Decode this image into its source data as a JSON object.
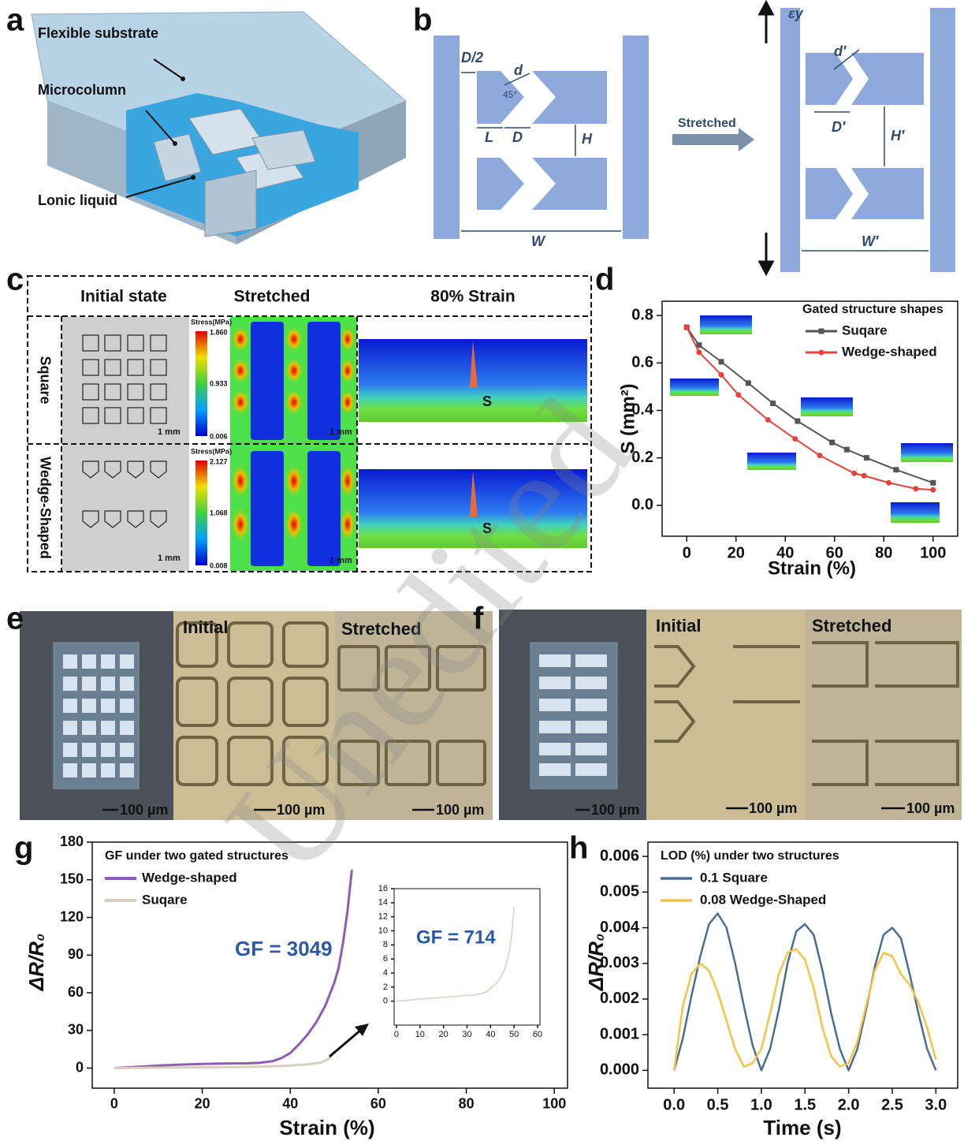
{
  "panel_labels": [
    "a",
    "b",
    "c",
    "d",
    "e",
    "f",
    "g",
    "h"
  ],
  "watermark": "Unedited",
  "panel_a": {
    "labels": [
      "Flexible substrate",
      "Microcolumn",
      "Lonic liquid"
    ]
  },
  "panel_b": {
    "initial_labels": [
      "D/2",
      "d",
      "45°",
      "L",
      "D",
      "H",
      "W"
    ],
    "arrow_label": "Stretched",
    "stretched_labels": [
      "εy",
      "d′",
      "D′",
      "H′",
      "W′"
    ]
  },
  "panel_c": {
    "columns": [
      "Initial state",
      "Stretched",
      "80% Strain"
    ],
    "rows": [
      "Square",
      "Wedge-Shaped"
    ],
    "colorbar_title": [
      "Stress(MPa)",
      "Stress(MPa)"
    ],
    "colorbar_square": [
      "1.860",
      "0.933",
      "0.006"
    ],
    "colorbar_wedge": [
      "2.127",
      "1.068",
      "0.008"
    ],
    "scale_bars": [
      "1 mm",
      "1 mm",
      "1 mm",
      "1 mm"
    ],
    "markers": [
      "S",
      "S"
    ]
  },
  "panel_e": {
    "headers": [
      "Initial",
      "Stretched"
    ],
    "scale_bars": [
      "100 µm",
      "100 µm",
      "100 µm"
    ]
  },
  "panel_f": {
    "headers": [
      "Initial",
      "Stretched"
    ],
    "scale_bars": [
      "100 µm",
      "100 µm",
      "100 µm"
    ]
  },
  "chart_data": [
    {
      "type": "line",
      "xlabel": "Strain (%)",
      "ylabel": "S (mm²)",
      "xlim": [
        -10,
        110
      ],
      "ylim": [
        -0.13,
        0.86
      ],
      "xticks": [
        0,
        20,
        40,
        60,
        80,
        100
      ],
      "yticks": [
        {
          "value": 0,
          "label": "0.0"
        },
        0.2,
        0.4,
        0.6,
        0.8
      ],
      "legend_title": "Gated structure shapes",
      "legend": "upper right",
      "series": [
        {
          "name": "Suqare",
          "color": "#555555",
          "marker": "square",
          "x": [
            0,
            5,
            14,
            25,
            35,
            45,
            59,
            65,
            73,
            85,
            100
          ],
          "values": [
            0.75,
            0.675,
            0.605,
            0.515,
            0.43,
            0.355,
            0.265,
            0.235,
            0.2,
            0.15,
            0.095
          ]
        },
        {
          "name": "Wedge-shaped",
          "color": "#e8413c",
          "marker": "circle",
          "x": [
            0,
            5,
            14,
            21,
            33,
            44,
            54,
            68,
            72,
            82,
            93,
            100
          ],
          "values": [
            0.75,
            0.645,
            0.55,
            0.465,
            0.36,
            0.28,
            0.21,
            0.135,
            0.125,
            0.095,
            0.07,
            0.065
          ]
        }
      ]
    },
    {
      "type": "line",
      "xlabel": "Strain (%)",
      "ylabel": "ΔR/R₀",
      "xlim": [
        -5,
        103
      ],
      "ylim": [
        -16,
        180
      ],
      "xticks": [
        0,
        20,
        40,
        60,
        80,
        100
      ],
      "yticks": [
        0,
        30,
        60,
        90,
        120,
        150,
        180
      ],
      "legend_title": "GF under two gated structures",
      "legend": "upper left",
      "annotation": "GF = 3049",
      "series": [
        {
          "name": "Wedge-shaped",
          "color": "#8c5cb8",
          "x": [
            0,
            5,
            10,
            15,
            20,
            25,
            30,
            33,
            36,
            38,
            40,
            42,
            44,
            46,
            48,
            50,
            51,
            52,
            53,
            54
          ],
          "values": [
            0,
            1,
            2,
            2.8,
            3.3,
            3.6,
            3.8,
            4.2,
            5.5,
            8,
            12,
            19,
            27,
            37,
            50,
            68,
            80,
            100,
            125,
            158
          ]
        },
        {
          "name": "Suqare",
          "color": "#d9cfc0",
          "x": [
            0,
            10,
            20,
            30,
            35,
            40,
            44,
            47,
            48,
            49,
            50
          ],
          "values": [
            0,
            0.3,
            0.6,
            1,
            1.3,
            2,
            3,
            4.5,
            6,
            8,
            13.4
          ]
        }
      ]
    },
    {
      "type": "line",
      "xlim": [
        -1,
        61
      ],
      "ylim": [
        -3.4,
        16
      ],
      "xticks": [
        0,
        10,
        20,
        30,
        40,
        50,
        60
      ],
      "yticks": [
        0,
        2,
        4,
        6,
        8,
        10,
        12,
        14,
        16
      ],
      "annotation": "GF = 714",
      "series": [
        {
          "color": "#d9cfc0",
          "x": [
            0,
            10,
            20,
            30,
            35,
            38,
            40,
            42,
            44,
            46,
            48,
            49,
            50
          ],
          "values": [
            0,
            0.3,
            0.55,
            0.8,
            1.0,
            1.3,
            1.8,
            2.4,
            3.2,
            4.5,
            7,
            9.5,
            13.4
          ]
        }
      ]
    },
    {
      "type": "line",
      "xlabel": "Time (s)",
      "ylabel": "ΔR/R₀",
      "xlim": [
        -0.3,
        3.25
      ],
      "ylim": [
        -0.0005,
        0.0064
      ],
      "xticks": [
        {
          "value": 0,
          "label": "0.0"
        },
        0.5,
        {
          "value": 1,
          "label": "1.0"
        },
        1.5,
        {
          "value": 2,
          "label": "2.0"
        },
        2.5,
        {
          "value": 3,
          "label": "3.0"
        }
      ],
      "yticks": [
        {
          "value": 0,
          "label": "0.000"
        },
        {
          "value": 0.001,
          "label": "0.001"
        },
        {
          "value": 0.002,
          "label": "0.002"
        },
        {
          "value": 0.003,
          "label": "0.003"
        },
        {
          "value": 0.004,
          "label": "0.004"
        },
        {
          "value": 0.005,
          "label": "0.005"
        },
        {
          "value": 0.006,
          "label": "0.006"
        }
      ],
      "legend_title": "LOD (%) under two structures",
      "legend": "upper left",
      "x": [
        0,
        0.1,
        0.2,
        0.3,
        0.4,
        0.5,
        0.6,
        0.7,
        0.8,
        0.9,
        1.0,
        1.1,
        1.2,
        1.3,
        1.4,
        1.5,
        1.6,
        1.7,
        1.8,
        1.9,
        2.0,
        2.1,
        2.2,
        2.3,
        2.4,
        2.5,
        2.6,
        2.7,
        2.8,
        2.9,
        3.0
      ],
      "series": [
        {
          "name": "0.1 Square",
          "color": "#4a6d94",
          "values": [
            0,
            0.0009,
            0.0021,
            0.0032,
            0.0041,
            0.0044,
            0.004,
            0.003,
            0.0018,
            0.0007,
            0,
            0.0006,
            0.0017,
            0.003,
            0.0039,
            0.0041,
            0.0038,
            0.0028,
            0.0016,
            0.0006,
            0,
            0.0006,
            0.0017,
            0.0029,
            0.0038,
            0.004,
            0.0037,
            0.0027,
            0.0016,
            0.0006,
            0
          ]
        },
        {
          "name": "0.08 Wedge-Shaped",
          "color": "#f5c342",
          "values": [
            0,
            0.0018,
            0.0027,
            0.003,
            0.0028,
            0.0022,
            0.0014,
            0.0006,
            0.0001,
            0.0002,
            0.0006,
            0.0016,
            0.0027,
            0.0033,
            0.0034,
            0.0031,
            0.0023,
            0.0012,
            0.0004,
            0.0001,
            0.0002,
            0.0008,
            0.0018,
            0.0028,
            0.0033,
            0.0032,
            0.0027,
            0.0024,
            0.0019,
            0.0012,
            0.0003
          ]
        }
      ]
    }
  ]
}
